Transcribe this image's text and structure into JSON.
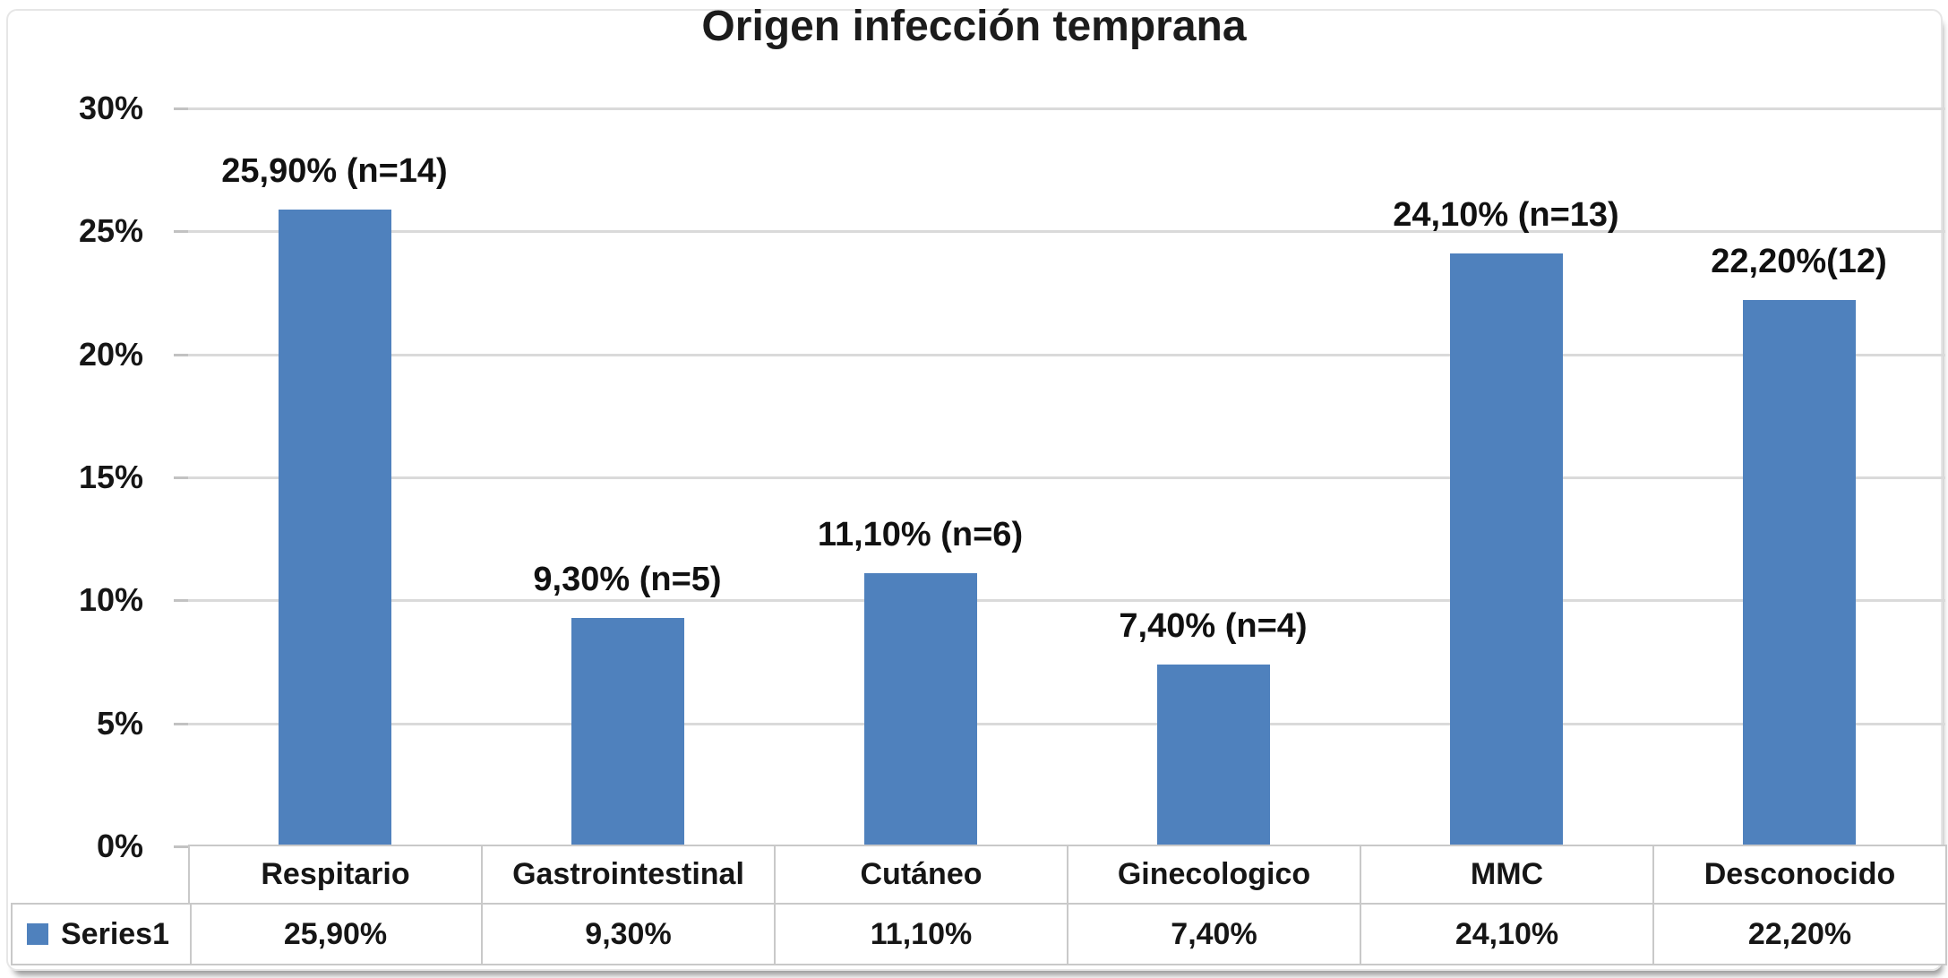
{
  "chart_data": {
    "type": "bar",
    "title": "Origen infección temprana",
    "categories": [
      "Respitario",
      "Gastrointestinal",
      "Cutáneo",
      "Ginecologico",
      "MMC",
      "Desconocido"
    ],
    "values": [
      25.9,
      9.3,
      11.1,
      7.4,
      24.1,
      22.2
    ],
    "bar_labels": [
      "25,90% (n=14)",
      "9,30% (n=5)",
      "11,10% (n=6)",
      "7,40% (n=4)",
      "24,10% (n=13)",
      "22,20%(12)"
    ],
    "counts": [
      14,
      5,
      6,
      4,
      13,
      12
    ],
    "series_name": "Series1",
    "table_values": [
      "25,90%",
      "9,30%",
      "11,10%",
      "7,40%",
      "24,10%",
      "22,20%"
    ],
    "y_axis": {
      "tick_labels": [
        "30%",
        "25%",
        "20%",
        "15%",
        "10%",
        "5%",
        "0%"
      ],
      "tick_values": [
        30,
        25,
        20,
        15,
        10,
        5,
        0
      ],
      "min": 0,
      "max": 30
    },
    "grid": true,
    "legend_position": "bottom-left-table",
    "colors": {
      "bar": "#4F81BD",
      "gridline": "#DADADA",
      "table_border": "#C9C9C9",
      "text": "#161616"
    }
  }
}
